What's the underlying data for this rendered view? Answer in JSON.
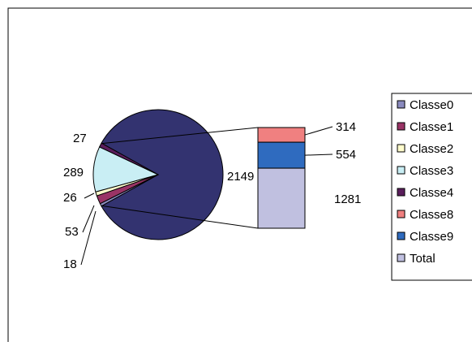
{
  "chart_data": {
    "type": "pie",
    "pie_slices": [
      {
        "label": "Classe0",
        "value": 18,
        "color": "#8b8bbf"
      },
      {
        "label": "Classe1",
        "value": 53,
        "color": "#9a3466"
      },
      {
        "label": "Classe2",
        "value": 26,
        "color": "#fffccc"
      },
      {
        "label": "Classe3",
        "value": 289,
        "color": "#c9eef4"
      },
      {
        "label": "Classe4",
        "value": 27,
        "color": "#5a1e5c"
      },
      {
        "label": "Total",
        "value": 2149,
        "color": "#333370"
      }
    ],
    "bar_of_pie": [
      {
        "label": "Classe8",
        "value": 314,
        "color": "#f08080"
      },
      {
        "label": "Classe9",
        "value": 554,
        "color": "#2f6bbf"
      },
      {
        "label": "Total",
        "value": 1281,
        "color": "#c0c0e0"
      }
    ],
    "legend": {
      "placement": "right",
      "entries": [
        {
          "label": "Classe0",
          "color": "#8b8bbf"
        },
        {
          "label": "Classe1",
          "color": "#9a3466"
        },
        {
          "label": "Classe2",
          "color": "#fffccc"
        },
        {
          "label": "Classe3",
          "color": "#c9eef4"
        },
        {
          "label": "Classe4",
          "color": "#5a1e5c"
        },
        {
          "label": "Classe8",
          "color": "#f08080"
        },
        {
          "label": "Classe9",
          "color": "#2f6bbf"
        },
        {
          "label": "Total",
          "color": "#c0c0e0"
        }
      ]
    }
  }
}
